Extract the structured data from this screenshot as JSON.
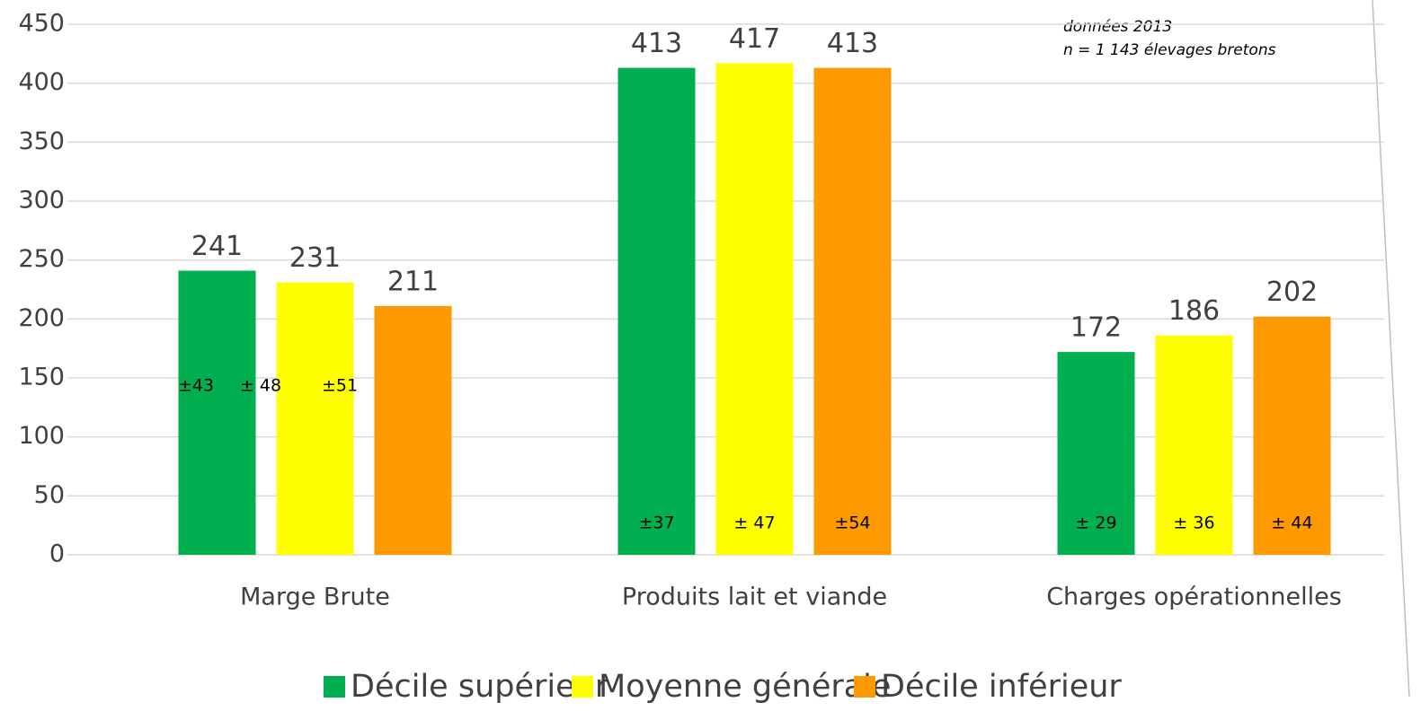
{
  "chart_data": {
    "type": "bar",
    "categories": [
      "Marge Brute",
      "Produits lait et viande",
      "Charges opérationnelles"
    ],
    "series": [
      {
        "name": "Décile supérieur",
        "color": "#00b050",
        "values": [
          241,
          413,
          172
        ],
        "error_labels": [
          "±43",
          "±37",
          "± 29"
        ]
      },
      {
        "name": "Moyenne générale",
        "color": "#ffff00",
        "values": [
          231,
          417,
          186
        ],
        "error_labels": [
          "± 48",
          "± 47",
          "± 36"
        ]
      },
      {
        "name": "Décile inférieur",
        "color": "#ff9900",
        "values": [
          211,
          413,
          202
        ],
        "error_labels": [
          "±51",
          "±54",
          "± 44"
        ]
      }
    ],
    "annotations": [
      "données 2013",
      "n = 1 143 élevages bretons"
    ],
    "ylim": [
      0,
      450
    ],
    "yticks": [
      0,
      50,
      100,
      150,
      200,
      250,
      300,
      350,
      400,
      450
    ],
    "grid": true
  }
}
